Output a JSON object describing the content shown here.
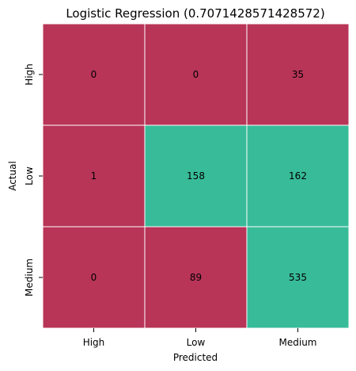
{
  "chart_data": {
    "type": "heatmap",
    "title": "Logistic Regression (0.7071428571428572)",
    "xlabel": "Predicted",
    "ylabel": "Actual",
    "x_categories": [
      "High",
      "Low",
      "Medium"
    ],
    "y_categories": [
      "High",
      "Low",
      "Medium"
    ],
    "values": [
      [
        0,
        0,
        35
      ],
      [
        1,
        158,
        162
      ],
      [
        0,
        89,
        535
      ]
    ],
    "colorbar": false,
    "grid_line_color": "#ffffff",
    "colors": {
      "low": "#b83558",
      "high": "#38bb99"
    },
    "color_threshold": 150
  }
}
